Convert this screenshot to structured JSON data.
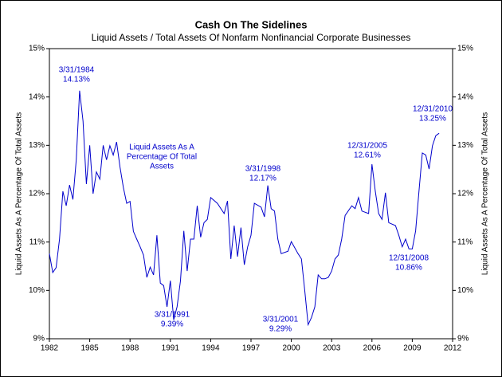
{
  "chart_data": {
    "type": "line",
    "title": "Cash On The Sidelines",
    "subtitle": "Liquid Assets / Total Assets Of Nonfarm Nonfinancial Corporate Businesses",
    "y_label": "Liquid Assets As A Percentage Of Total Assets",
    "y2_label": "Liquid Assets As A Percentage Of Total Assets",
    "legend_lines": [
      "Liquid Assets As A",
      "Percentage Of Total",
      "Assets"
    ],
    "x": [
      1982.0,
      1982.25,
      1982.5,
      1982.75,
      1983.0,
      1983.25,
      1983.5,
      1983.75,
      1984.0,
      1984.25,
      1984.5,
      1984.75,
      1985.0,
      1985.25,
      1985.5,
      1985.75,
      1986.0,
      1986.25,
      1986.5,
      1986.75,
      1987.0,
      1987.25,
      1987.5,
      1987.75,
      1988.0,
      1988.25,
      1988.5,
      1988.75,
      1989.0,
      1989.25,
      1989.5,
      1989.75,
      1990.0,
      1990.25,
      1990.5,
      1990.75,
      1991.0,
      1991.25,
      1991.5,
      1991.75,
      1992.0,
      1992.25,
      1992.5,
      1992.75,
      1993.0,
      1993.25,
      1993.5,
      1993.75,
      1994.0,
      1994.5,
      1995.0,
      1995.25,
      1995.5,
      1995.75,
      1996.0,
      1996.25,
      1996.5,
      1996.75,
      1997.0,
      1997.25,
      1997.75,
      1998.0,
      1998.25,
      1998.5,
      1998.75,
      1999.0,
      1999.25,
      1999.75,
      2000.0,
      2000.5,
      2000.75,
      2001.0,
      2001.25,
      2001.5,
      2001.75,
      2002.0,
      2002.25,
      2002.5,
      2002.75,
      2003.0,
      2003.25,
      2003.5,
      2003.75,
      2004.0,
      2004.5,
      2004.75,
      2005.0,
      2005.25,
      2005.75,
      2006.0,
      2006.25,
      2006.5,
      2006.75,
      2007.0,
      2007.25,
      2007.75,
      2008.0,
      2008.25,
      2008.5,
      2008.75,
      2009.0,
      2009.25,
      2009.5,
      2009.75,
      2010.0,
      2010.25,
      2010.5,
      2010.75,
      2011.0
    ],
    "series": [
      {
        "color": "#0000cc",
        "values": [
          10.76,
          10.37,
          10.47,
          11.06,
          12.05,
          11.75,
          12.18,
          11.88,
          12.7,
          14.13,
          13.5,
          12.2,
          13.0,
          12.0,
          12.45,
          12.3,
          13.0,
          12.7,
          12.99,
          12.8,
          13.07,
          12.55,
          12.13,
          11.8,
          11.84,
          11.22,
          11.06,
          10.9,
          10.73,
          10.27,
          10.48,
          10.32,
          11.14,
          10.15,
          10.1,
          9.66,
          10.2,
          9.39,
          9.66,
          10.2,
          11.23,
          10.4,
          11.06,
          11.06,
          11.75,
          11.1,
          11.4,
          11.47,
          11.92,
          11.8,
          11.59,
          11.85,
          10.65,
          11.34,
          10.7,
          11.3,
          10.53,
          10.9,
          11.14,
          11.8,
          11.72,
          11.52,
          12.17,
          11.69,
          11.64,
          11.06,
          10.76,
          10.81,
          11.01,
          10.76,
          10.65,
          9.99,
          9.29,
          9.44,
          9.66,
          10.32,
          10.24,
          10.24,
          10.27,
          10.4,
          10.65,
          10.73,
          11.06,
          11.55,
          11.75,
          11.69,
          11.92,
          11.64,
          11.59,
          12.61,
          12.05,
          11.59,
          11.47,
          12.02,
          11.4,
          11.34,
          11.14,
          10.9,
          11.06,
          10.86,
          10.86,
          11.23,
          12.05,
          12.84,
          12.8,
          12.51,
          12.99,
          13.2,
          13.25
        ]
      }
    ],
    "annotations": [
      {
        "date": "3/31/1984",
        "label": "14.13%",
        "value": 14.13
      },
      {
        "date": "3/31/1991",
        "label": "9.39%",
        "value": 9.39
      },
      {
        "date": "3/31/1998",
        "label": "12.17%",
        "value": 12.17
      },
      {
        "date": "3/31/2001",
        "label": "9.29%",
        "value": 9.29
      },
      {
        "date": "12/31/2005",
        "label": "12.61%",
        "value": 12.61
      },
      {
        "date": "12/31/2008",
        "label": "10.86%",
        "value": 10.86
      },
      {
        "date": "12/31/2010",
        "label": "13.25%",
        "value": 13.25
      }
    ],
    "xlim": [
      1982,
      2012
    ],
    "xticks": [
      1982,
      1985,
      1988,
      1991,
      1994,
      1997,
      2000,
      2003,
      2006,
      2009,
      2012
    ],
    "ylim": [
      9,
      15
    ],
    "yticks": [
      {
        "value": 9,
        "label": "9%"
      },
      {
        "value": 10,
        "label": "10%"
      },
      {
        "value": 11,
        "label": "11%"
      },
      {
        "value": 12,
        "label": "12%"
      },
      {
        "value": 13,
        "label": "13%"
      },
      {
        "value": 14,
        "label": "14%"
      },
      {
        "value": 15,
        "label": "15%"
      }
    ],
    "y2lim": [
      9,
      15
    ],
    "y2ticks": [
      {
        "value": 9,
        "label": "9%"
      },
      {
        "value": 10,
        "label": "10%"
      },
      {
        "value": 11,
        "label": "11%"
      },
      {
        "value": 12,
        "label": "12%"
      },
      {
        "value": 13,
        "label": "13%"
      },
      {
        "value": 14,
        "label": "14%"
      },
      {
        "value": 15,
        "label": "15%"
      }
    ]
  }
}
